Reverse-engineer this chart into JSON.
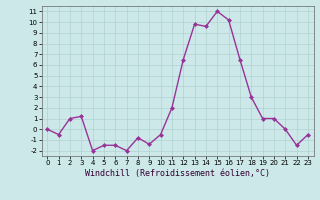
{
  "x": [
    0,
    1,
    2,
    3,
    4,
    5,
    6,
    7,
    8,
    9,
    10,
    11,
    12,
    13,
    14,
    15,
    16,
    17,
    18,
    19,
    20,
    21,
    22,
    23
  ],
  "y": [
    0,
    -0.5,
    1,
    1.2,
    -2,
    -1.5,
    -1.5,
    -2,
    -0.8,
    -1.4,
    -0.5,
    2,
    6.5,
    9.8,
    9.6,
    11,
    10.2,
    6.5,
    3,
    1,
    1,
    0,
    -1.5,
    -0.5
  ],
  "line_color": "#993399",
  "marker_color": "#993399",
  "bg_color": "#cce8e8",
  "grid_color": "#aacccc",
  "xlabel": "Windchill (Refroidissement éolien,°C)",
  "ylim": [
    -2.5,
    11.5
  ],
  "xlim": [
    -0.5,
    23.5
  ],
  "yticks": [
    -2,
    -1,
    0,
    1,
    2,
    3,
    4,
    5,
    6,
    7,
    8,
    9,
    10,
    11
  ],
  "xticks": [
    0,
    1,
    2,
    3,
    4,
    5,
    6,
    7,
    8,
    9,
    10,
    11,
    12,
    13,
    14,
    15,
    16,
    17,
    18,
    19,
    20,
    21,
    22,
    23
  ],
  "xlabel_fontsize": 6,
  "tick_fontsize": 5,
  "linewidth": 1.0,
  "markersize": 2.0
}
